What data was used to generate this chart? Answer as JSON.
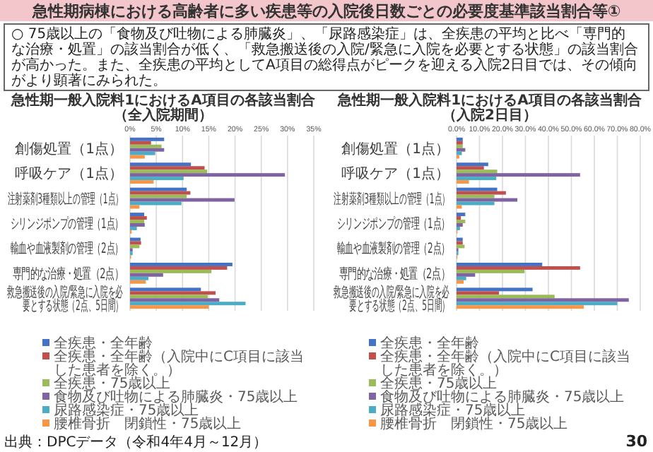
{
  "chart_data": [
    {
      "type": "bar",
      "orientation": "horizontal",
      "title": "急性期一般入院料1におけるA項目の各該当割合",
      "subtitle": "（全入院期間）",
      "annotations": [
        "急性期病棟における高齢者に多い疾患等の入院後日数ごとの必要度基準該当割合等①",
        "○ 75歳以上の「食物及び吐物による肺臓炎」、「尿路感染症」は、全疾患の平均と比べ「専門的な治療・処置」の該当割合が低く、「救急搬送後の入院/緊急に入院を必要とする状態」の該当割合が高かった。また、全疾患の平均としてA項目の総得点がピークを迎える入院2日目では、その傾向がより顕著にみられた。",
        "出典：DPCデータ（令和4年4月～12月）",
        "30"
      ],
      "categories": [
        "創傷処置（1点）",
        "呼吸ケア（1点）",
        "注射薬剤3種類以上の管理（1点）",
        "シリンジポンプの管理（1点）",
        "輸血や血液製剤の管理（2点）",
        "専門的な治療・処置（2点）",
        "救急搬送後の入院/緊急に入院を必要とする状態（2点、5日間）"
      ],
      "series": [
        {
          "name": "全疾患・全年齢",
          "color": "#4472c4",
          "values": [
            6.5,
            11.6,
            10.8,
            2.7,
            2.0,
            19.5,
            13.5
          ]
        },
        {
          "name": "全疾患・全年齢（入院中にC項目に該当した患者を除く。）",
          "color": "#c0504d",
          "values": [
            4.0,
            14.2,
            11.5,
            3.2,
            2.1,
            18.5,
            16.3
          ]
        },
        {
          "name": "全疾患・75歳以上",
          "color": "#9bbb59",
          "values": [
            6.0,
            14.7,
            10.8,
            2.7,
            1.8,
            15.5,
            14.8
          ]
        },
        {
          "name": "食物及び吐物による肺臓炎・75歳以上",
          "color": "#8064a2",
          "values": [
            6.5,
            29.5,
            19.9,
            2.8,
            0.5,
            6.3,
            17.0
          ]
        },
        {
          "name": "尿路感染症・75歳以上",
          "color": "#4bacc6",
          "values": [
            4.8,
            10.2,
            9.8,
            1.3,
            0.5,
            3.5,
            22.0
          ]
        },
        {
          "name": "腰椎骨折　閉鎖性・75歳以上",
          "color": "#f79646",
          "values": [
            2.8,
            4.5,
            1.8,
            0.3,
            0.2,
            3.0,
            15.0
          ]
        }
      ],
      "xlim": [
        0,
        35
      ],
      "xticks": [
        {
          "value": 0,
          "label": "0%"
        },
        {
          "value": 5,
          "label": "5%"
        },
        {
          "value": 10,
          "label": "10%"
        },
        {
          "value": 15,
          "label": "15%"
        },
        {
          "value": 20,
          "label": "20%"
        },
        {
          "value": 25,
          "label": "25%"
        },
        {
          "value": 30,
          "label": "30%"
        },
        {
          "value": 35,
          "label": "35%"
        }
      ],
      "grid": "x",
      "legend": "bottom"
    },
    {
      "type": "bar",
      "orientation": "horizontal",
      "title": "急性期一般入院料1におけるA項目の各該当割合",
      "subtitle": "（入院2日目）",
      "categories": [
        "創傷処置（1点）",
        "呼吸ケア（1点）",
        "注射薬剤3種類以上の管理（1点）",
        "シリンジポンプの管理（1点）",
        "輸血や血液製剤の管理（2点）",
        "専門的な治療・処置（2点）",
        "救急搬送後の入院/緊急に入院を必要とする状態（2点、5日間）"
      ],
      "series": [
        {
          "name": "全疾患・全年齢",
          "color": "#4472c4",
          "values": [
            2.7,
            13.8,
            17.7,
            3.8,
            2.7,
            37.3,
            33.1
          ]
        },
        {
          "name": "全疾患・全年齢（入院中にC項目に該当した患者を除く。）",
          "color": "#c0504d",
          "values": [
            2.7,
            11.9,
            21.5,
            1.9,
            2.7,
            53.8,
            18.5
          ]
        },
        {
          "name": "全疾患・75歳以上",
          "color": "#9bbb59",
          "values": [
            2.7,
            17.7,
            16.5,
            3.8,
            3.5,
            29.6,
            42.7
          ]
        },
        {
          "name": "食物及び吐物による肺臓炎・75歳以上",
          "color": "#8064a2",
          "values": [
            3.8,
            53.8,
            26.5,
            2.7,
            0.8,
            8.1,
            75.0
          ]
        },
        {
          "name": "尿路感染症・75歳以上",
          "color": "#4bacc6",
          "values": [
            2.3,
            17.3,
            16.5,
            1.5,
            0.8,
            4.2,
            70.0
          ]
        },
        {
          "name": "腰椎骨折　閉鎖性・75歳以上",
          "color": "#f79646",
          "values": [
            1.2,
            5.4,
            2.3,
            0.4,
            0.4,
            3.1,
            55.4
          ]
        }
      ],
      "xlim": [
        0,
        80
      ],
      "xticks": [
        {
          "value": 0,
          "label": "0.0%"
        },
        {
          "value": 10,
          "label": "10.0%"
        },
        {
          "value": 20,
          "label": "20.0%"
        },
        {
          "value": 30,
          "label": "30.0%"
        },
        {
          "value": 40,
          "label": "40.0%"
        },
        {
          "value": 50,
          "label": "50.0%"
        },
        {
          "value": 60,
          "label": "60.0%"
        },
        {
          "value": 70,
          "label": "70.0%"
        },
        {
          "value": 80,
          "label": "80.0%"
        }
      ],
      "grid": "x",
      "legend": "bottom"
    }
  ]
}
